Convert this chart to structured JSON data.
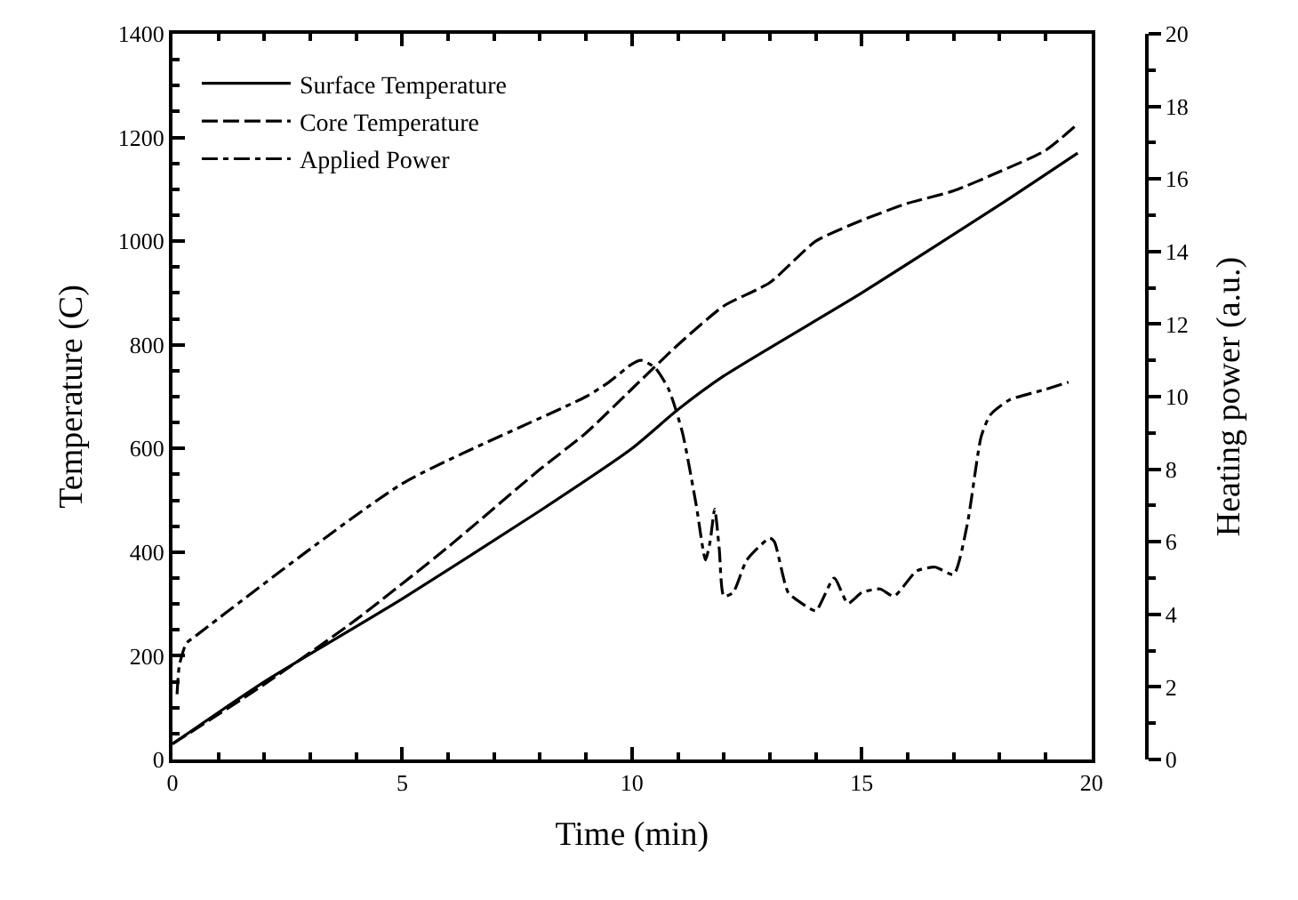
{
  "chart_data": {
    "type": "line",
    "xlabel": "Time (min)",
    "ylabel": "Temperature (C)",
    "y2label": "Heating power (a.u.)",
    "xlim": [
      0,
      20
    ],
    "xticks": [
      0,
      5,
      10,
      15,
      20
    ],
    "ylim": [
      0,
      1400
    ],
    "yticks": [
      0,
      200,
      400,
      600,
      800,
      1000,
      1200,
      1400
    ],
    "y2lim": [
      0,
      20
    ],
    "y2ticks": [
      0,
      2,
      4,
      6,
      8,
      10,
      12,
      14,
      16,
      18,
      20
    ],
    "legend": "top left",
    "marker": "none",
    "series": [
      {
        "name": "Surface Temperature",
        "color": "#000000",
        "line_style": "solid",
        "x": [
          0,
          2,
          5,
          8,
          10,
          11,
          12,
          15,
          18,
          19.7
        ],
        "values": [
          30,
          150,
          310,
          480,
          600,
          675,
          740,
          900,
          1070,
          1170
        ]
      },
      {
        "name": "Core Temperature",
        "color": "#000000",
        "line_style": "dashed",
        "x": [
          0,
          2,
          4,
          6,
          8,
          9,
          10,
          11,
          12,
          13,
          14,
          15,
          16,
          17,
          18,
          19,
          19.7
        ],
        "values": [
          30,
          145,
          270,
          410,
          560,
          630,
          715,
          800,
          875,
          920,
          1000,
          1040,
          1073,
          1097,
          1134,
          1175,
          1226
        ]
      },
      {
        "name": "Applied Power",
        "color": "#000000",
        "line_style": "dashdot",
        "axis": "y2",
        "x": [
          0.1,
          0.15,
          0.3,
          0.5,
          5,
          9,
          9.5,
          10,
          10.2,
          10.5,
          10.8,
          11.1,
          11.4,
          11.6,
          11.7,
          11.8,
          11.9,
          12.0,
          12.2,
          12.5,
          13.0,
          13.1,
          13.4,
          13.7,
          14.0,
          14.4,
          14.7,
          15.0,
          15.4,
          15.7,
          16.2,
          16.6,
          17.0,
          17.3,
          17.6,
          17.8,
          18.2,
          19.0,
          19.5
        ],
        "values": [
          1.8,
          2.6,
          3.2,
          3.4,
          7.6,
          10.0,
          10.4,
          10.9,
          11.0,
          10.8,
          10.2,
          9.0,
          7.0,
          5.5,
          6.0,
          6.9,
          5.8,
          4.5,
          4.6,
          5.5,
          6.1,
          6.0,
          4.6,
          4.3,
          4.1,
          5.0,
          4.3,
          4.6,
          4.7,
          4.5,
          5.2,
          5.3,
          5.1,
          6.5,
          8.9,
          9.5,
          9.9,
          10.2,
          10.4
        ]
      }
    ]
  }
}
